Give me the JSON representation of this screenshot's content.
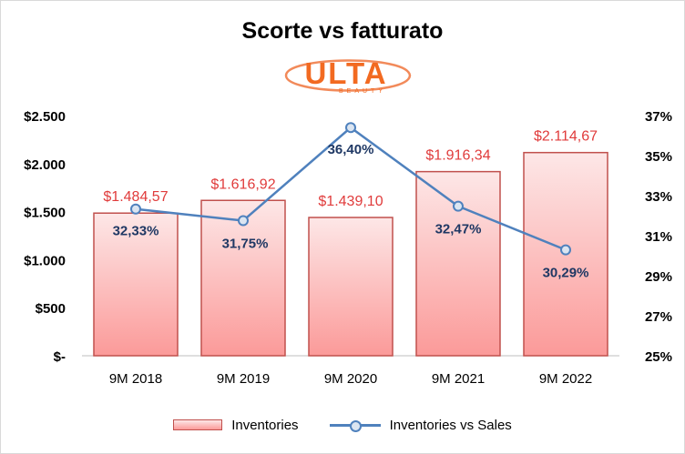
{
  "chart_data": {
    "type": "bar",
    "title": "Scorte vs fatturato",
    "logo_text": "ULTA BEAUTY",
    "categories": [
      "9M 2018",
      "9M 2019",
      "9M 2020",
      "9M 2021",
      "9M 2022"
    ],
    "series": [
      {
        "name": "Inventories",
        "type": "bar",
        "axis": "left",
        "values": [
          1484.57,
          1616.92,
          1439.1,
          1916.34,
          2114.67
        ],
        "labels": [
          "$1.484,57",
          "$1.616,92",
          "$1.439,10",
          "$1.916,34",
          "$2.114,67"
        ],
        "color": "#fb9a99",
        "border_color": "#c0504d",
        "label_color": "#e03b3b"
      },
      {
        "name": "Inventories vs Sales",
        "type": "line",
        "axis": "right",
        "values": [
          32.33,
          31.75,
          36.4,
          32.47,
          30.29
        ],
        "labels": [
          "32,33%",
          "31,75%",
          "36,40%",
          "32,47%",
          "30,29%"
        ],
        "color": "#4f81bd",
        "label_color": "#1f3864"
      }
    ],
    "left_axis": {
      "min": 0,
      "max": 2500,
      "ticks": [
        0,
        500,
        1000,
        1500,
        2000,
        2500
      ],
      "tick_labels": [
        "$-",
        "$500",
        "$1.000",
        "$1.500",
        "$2.000",
        "$2.500"
      ]
    },
    "right_axis": {
      "min": 25,
      "max": 37,
      "ticks": [
        25,
        27,
        29,
        31,
        33,
        35,
        37
      ],
      "tick_labels": [
        "25%",
        "27%",
        "29%",
        "31%",
        "33%",
        "35%",
        "37%"
      ]
    },
    "grid": false,
    "legend_position": "bottom"
  }
}
